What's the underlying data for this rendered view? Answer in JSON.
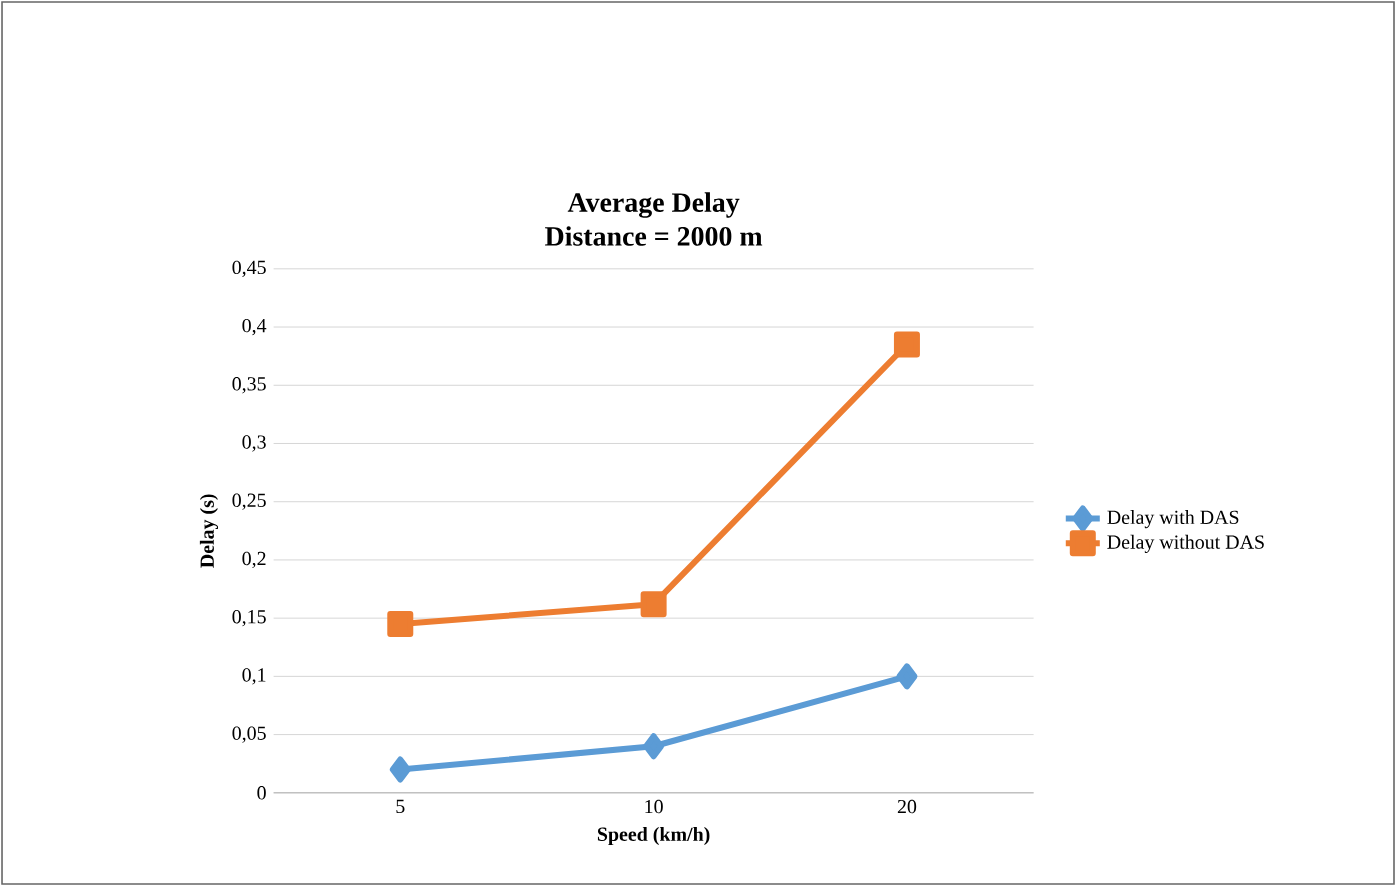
{
  "chart_data": {
    "type": "line",
    "title": "Average Delay",
    "subtitle": "Distance = 2000 m",
    "xlabel": "Speed (km/h)",
    "ylabel": "Delay (s)",
    "categories": [
      "5",
      "10",
      "20"
    ],
    "series": [
      {
        "name": "Delay with DAS",
        "color": "#5b9bd5",
        "marker": "diamond",
        "values": [
          0.02,
          0.04,
          0.1
        ]
      },
      {
        "name": "Delay without DAS",
        "color": "#ed7d31",
        "marker": "square",
        "values": [
          0.145,
          0.162,
          0.385
        ]
      }
    ],
    "ylim": [
      0,
      0.45
    ],
    "yticks": [
      {
        "value": 0,
        "label": "0"
      },
      {
        "value": 0.05,
        "label": "0,05"
      },
      {
        "value": 0.1,
        "label": "0,1"
      },
      {
        "value": 0.15,
        "label": "0,15"
      },
      {
        "value": 0.2,
        "label": "0,2"
      },
      {
        "value": 0.25,
        "label": "0,25"
      },
      {
        "value": 0.3,
        "label": "0,3"
      },
      {
        "value": 0.35,
        "label": "0,35"
      },
      {
        "value": 0.4,
        "label": "0,4"
      },
      {
        "value": 0.45,
        "label": "0,45"
      }
    ],
    "grid": "y",
    "legend": "right"
  }
}
